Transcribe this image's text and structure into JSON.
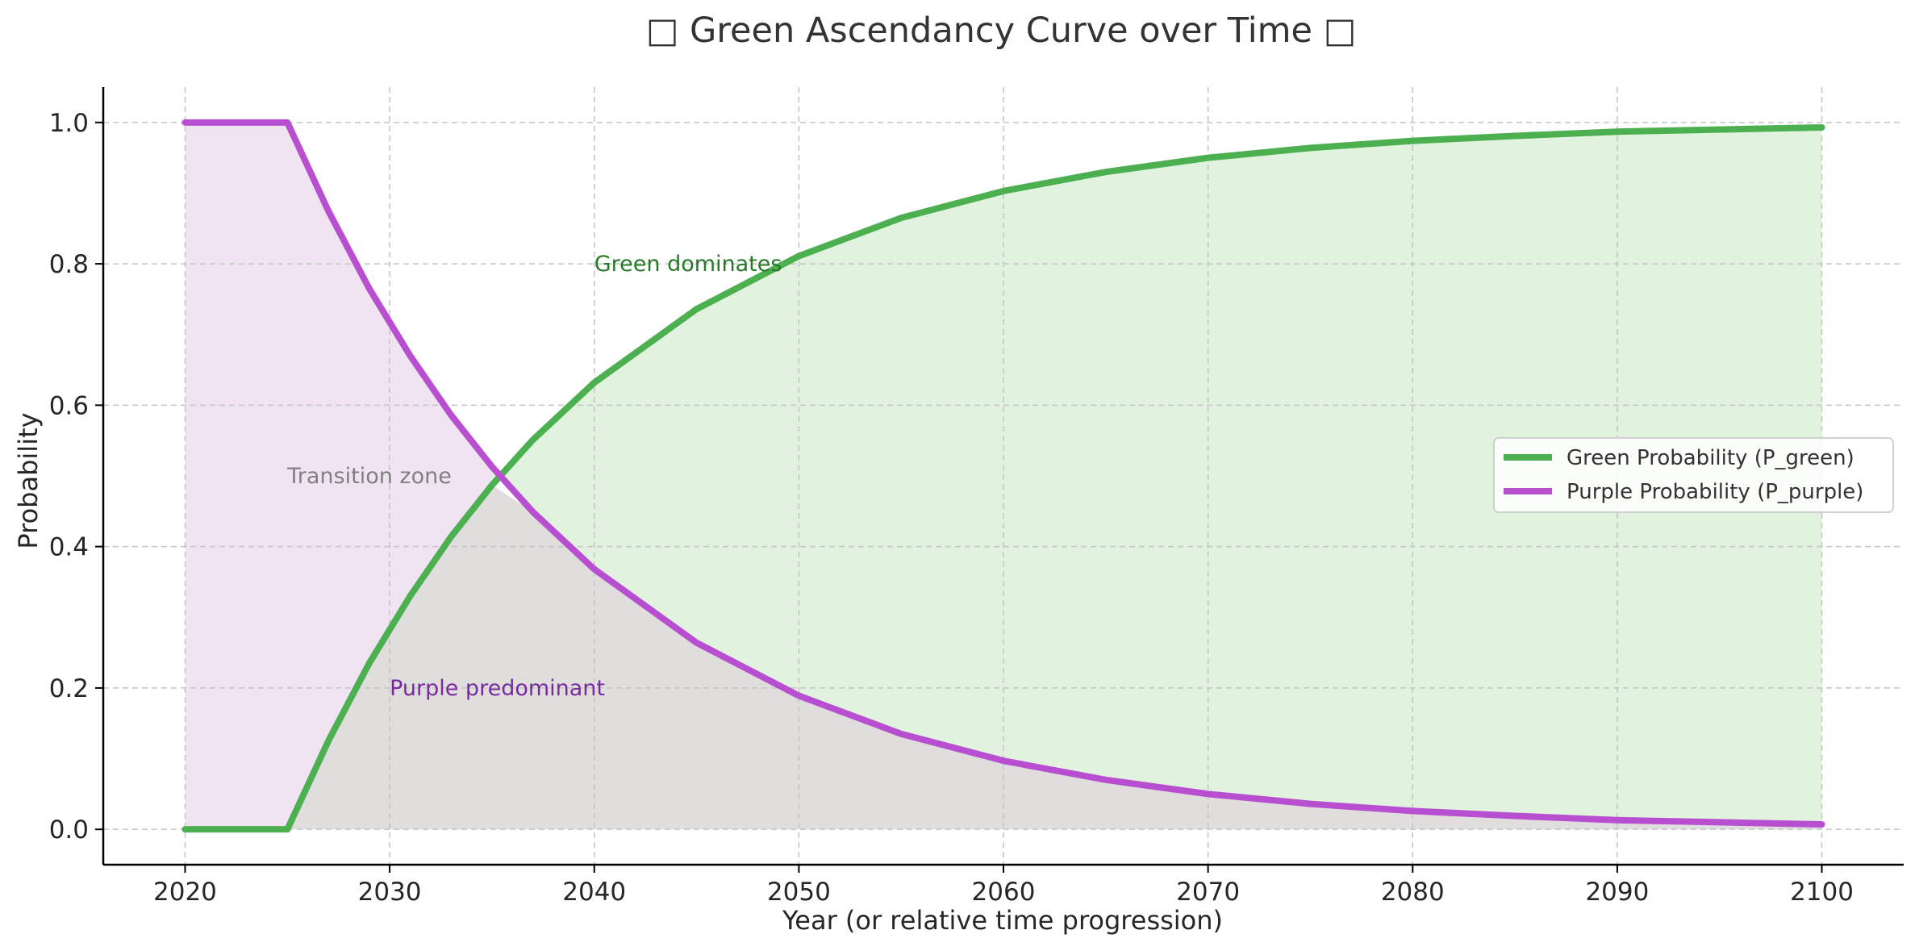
{
  "chart_data": {
    "type": "area",
    "title": "□ Green Ascendancy Curve over Time □",
    "xlabel": "Year (or relative time progression)",
    "ylabel": "Probability",
    "xlim": [
      2016,
      2104
    ],
    "ylim": [
      -0.05,
      1.05
    ],
    "xticks": [
      2020,
      2030,
      2040,
      2050,
      2060,
      2070,
      2080,
      2090,
      2100
    ],
    "yticks": [
      0.0,
      0.2,
      0.4,
      0.6,
      0.8,
      1.0
    ],
    "grid": true,
    "legend_position": "center-right",
    "x": [
      2020,
      2025,
      2027,
      2029,
      2031,
      2033,
      2035,
      2037,
      2040,
      2045,
      2050,
      2055,
      2060,
      2065,
      2070,
      2075,
      2080,
      2085,
      2090,
      2095,
      2100
    ],
    "series": [
      {
        "name": "Green Probability (P_green)",
        "color": "#4caf50",
        "fill": "#e1f2df",
        "values": [
          0.0,
          0.0,
          0.125,
          0.235,
          0.33,
          0.414,
          0.487,
          0.551,
          0.632,
          0.736,
          0.811,
          0.865,
          0.903,
          0.93,
          0.95,
          0.964,
          0.974,
          0.981,
          0.987,
          0.99,
          0.993
        ]
      },
      {
        "name": "Purple Probability (P_purple)",
        "color": "#b84fd1",
        "fill": "#f0e4f3",
        "values": [
          1.0,
          1.0,
          0.875,
          0.765,
          0.67,
          0.586,
          0.513,
          0.449,
          0.368,
          0.264,
          0.189,
          0.135,
          0.097,
          0.07,
          0.05,
          0.036,
          0.026,
          0.019,
          0.013,
          0.01,
          0.007
        ]
      }
    ],
    "overlap_fill": "#dfdedd",
    "annotations": [
      {
        "text": "Green dominates",
        "x": 2040,
        "y": 0.8,
        "color": "#267a26"
      },
      {
        "text": "Transition zone",
        "x": 2025,
        "y": 0.5,
        "color": "#808080"
      },
      {
        "text": "Purple predominant",
        "x": 2030,
        "y": 0.2,
        "color": "#7a2aa0"
      }
    ]
  }
}
